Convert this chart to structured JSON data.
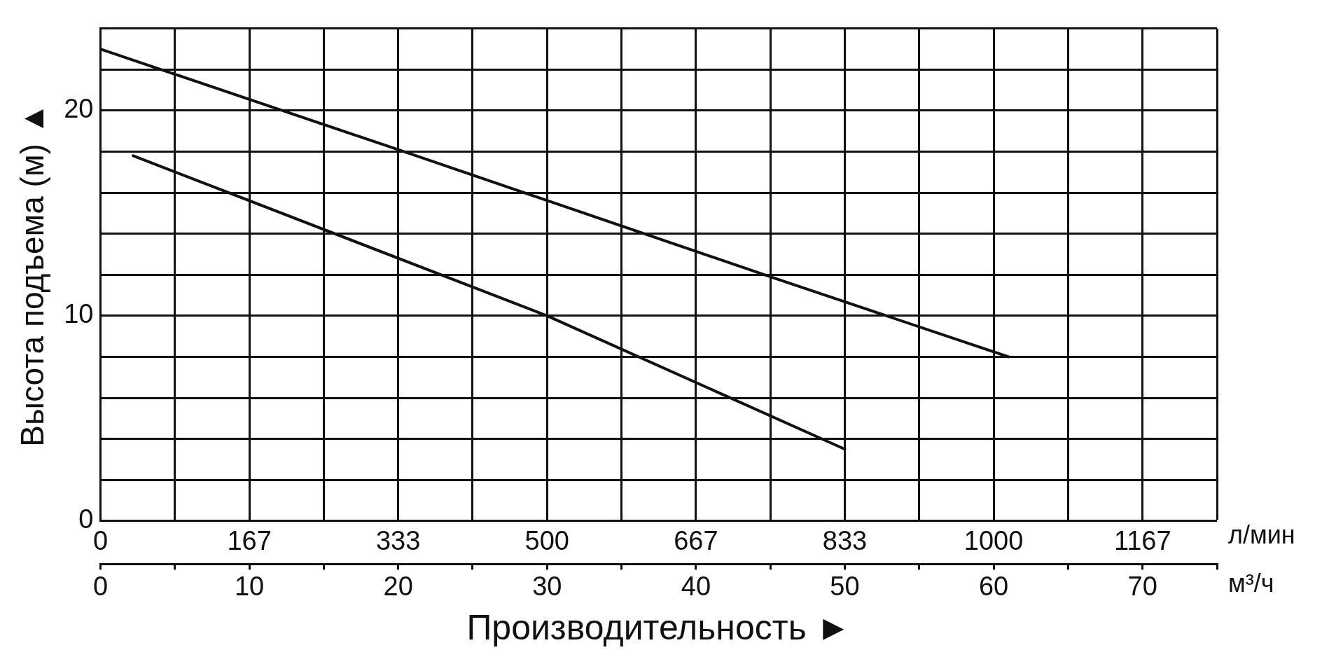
{
  "chart_data": {
    "type": "line",
    "xlabel": "Производительность ►",
    "ylabel": "Высота подъема (м) ▲",
    "x2label": "л/мин",
    "annotations": [
      "м³/ч"
    ],
    "xlim": [
      0,
      75
    ],
    "xticks": [
      0,
      {
        "value": 5,
        "label": null
      },
      10,
      {
        "value": 15,
        "label": null
      },
      20,
      {
        "value": 25,
        "label": null
      },
      30,
      {
        "value": 35,
        "label": null
      },
      40,
      {
        "value": 45,
        "label": null
      },
      50,
      {
        "value": 55,
        "label": null
      },
      60,
      {
        "value": 65,
        "label": null
      },
      70,
      {
        "value": 75,
        "label": null
      }
    ],
    "x2lim": [
      0,
      1250
    ],
    "x2ticks": [
      0,
      {
        "value": 166.7,
        "label": "167"
      },
      {
        "value": 333.3,
        "label": "333"
      },
      500,
      {
        "value": 666.7,
        "label": "667"
      },
      {
        "value": 833.3,
        "label": "833"
      },
      1000,
      {
        "value": 1166.7,
        "label": "1167"
      }
    ],
    "ylim": [
      0,
      24
    ],
    "yticks": [
      0,
      {
        "value": 2,
        "label": null
      },
      {
        "value": 4,
        "label": null
      },
      {
        "value": 6,
        "label": null
      },
      {
        "value": 8,
        "label": null
      },
      10,
      {
        "value": 12,
        "label": null
      },
      {
        "value": 14,
        "label": null
      },
      {
        "value": 16,
        "label": null
      },
      {
        "value": 18,
        "label": null
      },
      20,
      {
        "value": 22,
        "label": null
      },
      {
        "value": 24,
        "label": null
      }
    ],
    "grid": true,
    "legend": false,
    "marker": "none",
    "line_style": "solid",
    "series": [
      {
        "color": "#111111",
        "x": [
          0,
          20,
          45,
          61
        ],
        "values": [
          23,
          18.1,
          11.9,
          8
        ]
      },
      {
        "color": "#111111",
        "x": [
          2.2,
          30,
          50
        ],
        "values": [
          17.8,
          10,
          3.5
        ]
      }
    ]
  }
}
